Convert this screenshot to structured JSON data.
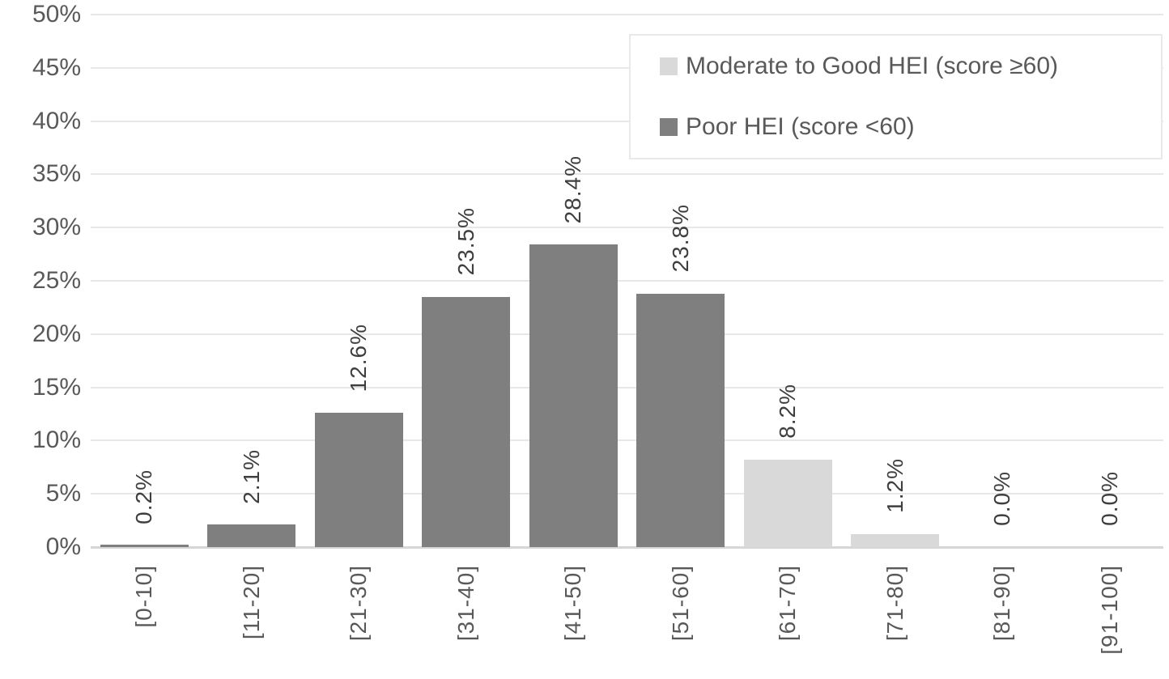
{
  "chart_data": {
    "type": "bar",
    "title": "",
    "xlabel": "",
    "ylabel": "",
    "categories": [
      "[0-10]",
      "[11-20]",
      "[21-30]",
      "[31-40]",
      "[41-50]",
      "[51-60]",
      "[61-70]",
      "[71-80]",
      "[81-90]",
      "[91-100]"
    ],
    "series": [
      {
        "name": "Moderate to Good HEI (score ≥60)",
        "color": "#d9d9d9",
        "values": [
          null,
          null,
          null,
          null,
          null,
          null,
          8.2,
          1.2,
          0.0,
          0.0
        ]
      },
      {
        "name": "Poor HEI (score <60)",
        "color": "#7f7f7f",
        "values": [
          0.2,
          2.1,
          12.6,
          23.5,
          28.4,
          23.8,
          null,
          null,
          null,
          null
        ]
      }
    ],
    "data_labels": [
      "0.2%",
      "2.1%",
      "12.6%",
      "23.5%",
      "28.4%",
      "23.8%",
      "8.2%",
      "1.2%",
      "0.0%",
      "0.0%"
    ],
    "y_ticks": [
      {
        "label": "0%",
        "value": 0
      },
      {
        "label": "5%",
        "value": 5
      },
      {
        "label": "10%",
        "value": 10
      },
      {
        "label": "15%",
        "value": 15
      },
      {
        "label": "20%",
        "value": 20
      },
      {
        "label": "25%",
        "value": 25
      },
      {
        "label": "30%",
        "value": 30
      },
      {
        "label": "35%",
        "value": 35
      },
      {
        "label": "40%",
        "value": 40
      },
      {
        "label": "45%",
        "value": 45
      },
      {
        "label": "50%",
        "value": 50
      }
    ],
    "ylim": [
      0,
      50
    ],
    "grid": true,
    "legend_position": "top-right",
    "colors": {
      "axis_text": "#595959",
      "data_label_text": "#3f3f3f",
      "gridline": "#e7e7e7",
      "axis_line": "#d6d6d6",
      "background": "#ffffff"
    }
  }
}
